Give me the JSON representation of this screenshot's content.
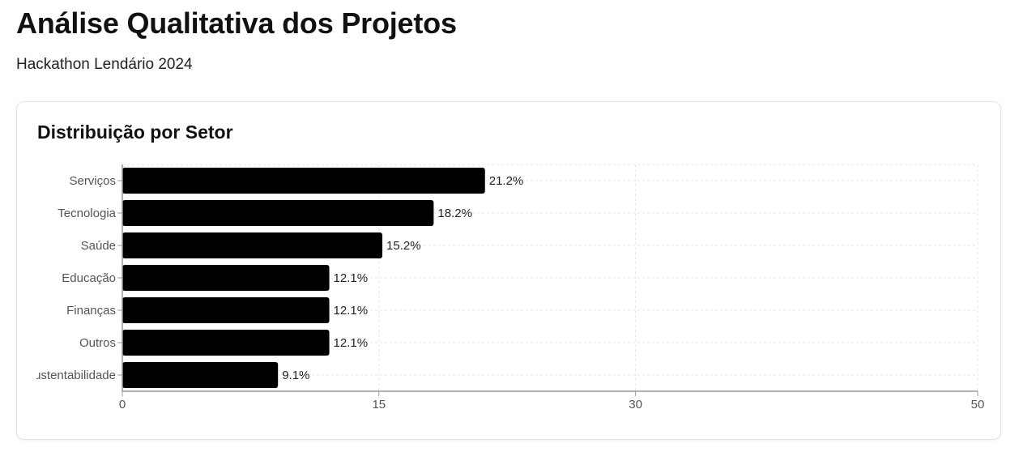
{
  "header": {
    "title": "Análise Qualitativa dos Projetos",
    "subtitle": "Hackathon Lendário 2024"
  },
  "card": {
    "title": "Distribuição por Setor"
  },
  "colors": {
    "bar": "#000000",
    "grid": "#e6e6e6",
    "axis": "#999999"
  },
  "chart_data": {
    "type": "bar",
    "orientation": "horizontal",
    "title": "Distribuição por Setor",
    "categories": [
      "Serviços",
      "Tecnologia",
      "Saúde",
      "Educação",
      "Finanças",
      "Outros",
      "Sustentabilidade"
    ],
    "values": [
      21.2,
      18.2,
      15.2,
      12.1,
      12.1,
      12.1,
      9.1
    ],
    "value_labels": [
      "21.2%",
      "18.2%",
      "15.2%",
      "12.1%",
      "12.1%",
      "12.1%",
      "9.1%"
    ],
    "xticks": [
      0,
      15,
      30,
      50
    ],
    "xlim": [
      0,
      50
    ],
    "grid": true,
    "xlabel": "",
    "ylabel": ""
  }
}
